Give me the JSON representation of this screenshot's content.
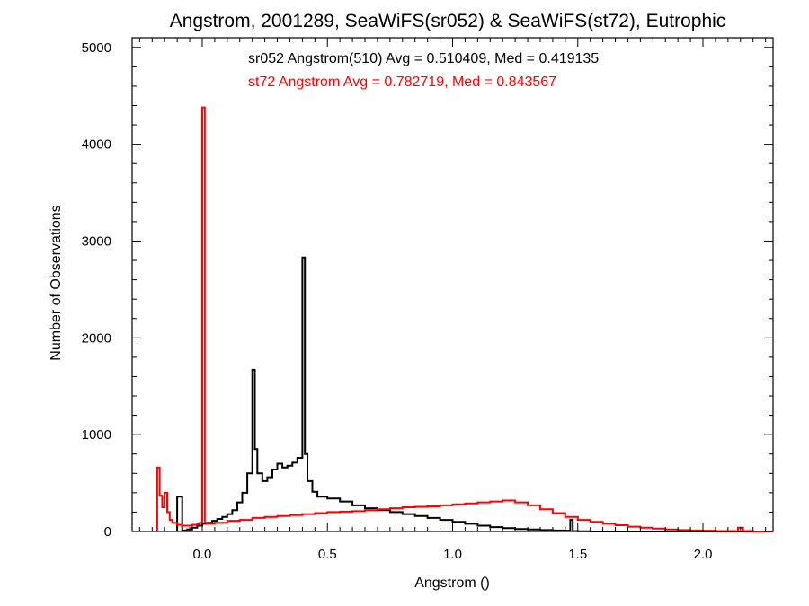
{
  "chart_data": {
    "type": "histogram",
    "title": "Angstrom, 2001289, SeaWiFS(sr052) & SeaWiFS(st72), Eutrophic",
    "xlabel": "Angstrom ()",
    "ylabel": "Number of Observations",
    "xlim": [
      -0.28,
      2.28
    ],
    "ylim": [
      0,
      5100
    ],
    "x_ticks": [
      0.0,
      0.5,
      1.0,
      1.5,
      2.0
    ],
    "x_tick_labels": [
      "0.0",
      "0.5",
      "1.0",
      "1.5",
      "2.0"
    ],
    "y_ticks": [
      0,
      1000,
      2000,
      3000,
      4000,
      5000
    ],
    "y_tick_labels": [
      "0",
      "1000",
      "2000",
      "3000",
      "4000",
      "5000"
    ],
    "grid": false,
    "annotations": [
      {
        "text": "sr052 Angstrom(510) Avg = 0.510409, Med = 0.419135",
        "color": "#000000"
      },
      {
        "text": "st72 Angstrom Avg = 0.782719, Med = 0.843567",
        "color": "#ff0000"
      }
    ],
    "series": [
      {
        "color": "#000000",
        "x": [
          -0.1,
          -0.08,
          -0.06,
          -0.04,
          -0.02,
          0.0,
          0.02,
          0.04,
          0.06,
          0.08,
          0.1,
          0.12,
          0.14,
          0.16,
          0.18,
          0.2,
          0.21,
          0.22,
          0.24,
          0.26,
          0.28,
          0.3,
          0.32,
          0.34,
          0.36,
          0.38,
          0.4,
          0.41,
          0.42,
          0.44,
          0.46,
          0.5,
          0.55,
          0.6,
          0.65,
          0.7,
          0.75,
          0.8,
          0.85,
          0.9,
          0.95,
          1.0,
          1.05,
          1.1,
          1.15,
          1.2,
          1.25,
          1.3,
          1.35,
          1.4,
          1.45,
          1.47,
          1.48,
          1.5,
          1.55,
          1.6
        ],
        "y": [
          360,
          10,
          20,
          40,
          60,
          80,
          90,
          110,
          130,
          150,
          180,
          220,
          300,
          400,
          600,
          1670,
          850,
          600,
          520,
          560,
          640,
          700,
          660,
          680,
          710,
          760,
          2830,
          800,
          520,
          410,
          360,
          340,
          310,
          270,
          240,
          220,
          200,
          180,
          160,
          140,
          120,
          100,
          80,
          60,
          45,
          35,
          25,
          20,
          15,
          10,
          8,
          120,
          5,
          3,
          0,
          0
        ]
      },
      {
        "color": "#ff0000",
        "x": [
          -0.18,
          -0.17,
          -0.16,
          -0.15,
          -0.14,
          -0.13,
          -0.12,
          -0.1,
          -0.08,
          -0.06,
          -0.04,
          -0.02,
          -0.01,
          0.0,
          0.01,
          0.02,
          0.05,
          0.1,
          0.15,
          0.2,
          0.25,
          0.3,
          0.35,
          0.4,
          0.45,
          0.5,
          0.55,
          0.6,
          0.65,
          0.7,
          0.75,
          0.8,
          0.85,
          0.9,
          0.95,
          1.0,
          1.05,
          1.1,
          1.15,
          1.2,
          1.25,
          1.3,
          1.35,
          1.4,
          1.45,
          1.5,
          1.55,
          1.6,
          1.65,
          1.7,
          1.75,
          1.8,
          1.85,
          1.9,
          1.95,
          2.0,
          2.05,
          2.1,
          2.14,
          2.16,
          2.2
        ],
        "y": [
          660,
          370,
          250,
          400,
          200,
          120,
          90,
          70,
          60,
          60,
          70,
          80,
          90,
          4380,
          90,
          80,
          90,
          110,
          120,
          140,
          150,
          160,
          170,
          180,
          190,
          200,
          205,
          210,
          220,
          230,
          240,
          250,
          255,
          260,
          270,
          280,
          290,
          300,
          310,
          320,
          300,
          270,
          230,
          190,
          150,
          120,
          100,
          80,
          65,
          50,
          40,
          30,
          20,
          15,
          10,
          8,
          5,
          5,
          40,
          5,
          0
        ]
      }
    ]
  }
}
